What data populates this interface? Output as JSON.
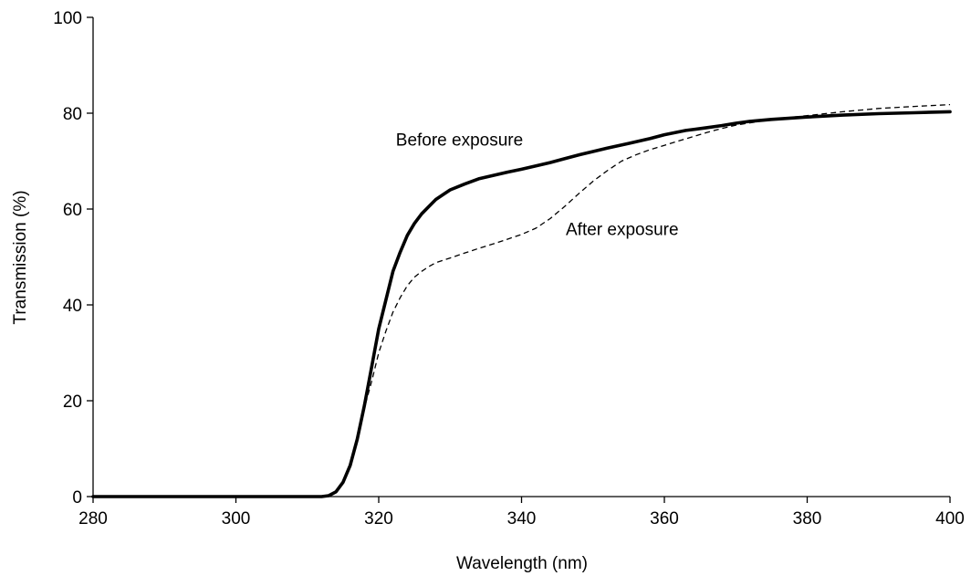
{
  "chart_data": {
    "type": "line",
    "xlabel": "Wavelength (nm)",
    "ylabel": "Transmission (%)",
    "xlim": [
      280,
      400
    ],
    "ylim": [
      0,
      100
    ],
    "xticks": [
      280,
      300,
      320,
      340,
      360,
      380,
      400
    ],
    "yticks": [
      0,
      20,
      40,
      60,
      80,
      100
    ],
    "grid": false,
    "series": [
      {
        "name": "Before exposure",
        "style": "solid-thick",
        "color": "#000000",
        "x": [
          280,
          300,
          312,
          313,
          314,
          315,
          316,
          317,
          318,
          319,
          320,
          321,
          322,
          323,
          324,
          325,
          326,
          327,
          328,
          329,
          330,
          332,
          334,
          336,
          338,
          340,
          342,
          344,
          346,
          348,
          350,
          352,
          355,
          358,
          360,
          363,
          366,
          368,
          370,
          372,
          375,
          380,
          385,
          390,
          395,
          400
        ],
        "y": [
          0,
          0,
          0,
          0.2,
          1,
          3,
          6.5,
          12,
          19,
          27,
          35,
          41,
          47,
          51,
          54.5,
          57,
          59,
          60.5,
          62,
          63,
          64,
          65.2,
          66.3,
          67,
          67.7,
          68.3,
          69,
          69.7,
          70.5,
          71.3,
          72,
          72.7,
          73.7,
          74.7,
          75.5,
          76.4,
          77,
          77.4,
          77.9,
          78.3,
          78.7,
          79.2,
          79.6,
          79.9,
          80.1,
          80.3
        ]
      },
      {
        "name": "After exposure",
        "style": "dashed-thin",
        "color": "#000000",
        "x": [
          280,
          300,
          312,
          313,
          314,
          315,
          316,
          317,
          318,
          319,
          320,
          321,
          322,
          323,
          324,
          325,
          326,
          327,
          328,
          330,
          332,
          334,
          336,
          338,
          340,
          342,
          344,
          346,
          348,
          350,
          352,
          354,
          356,
          358,
          360,
          362,
          364,
          366,
          368,
          370,
          375,
          380,
          385,
          390,
          395,
          400
        ],
        "y": [
          0,
          0,
          0,
          0.2,
          1,
          3,
          6.5,
          12,
          18.5,
          24,
          30,
          34.5,
          38.5,
          41.5,
          44,
          45.8,
          47,
          48,
          48.8,
          49.8,
          50.8,
          51.8,
          52.7,
          53.7,
          54.7,
          56,
          58,
          60.5,
          63.2,
          65.8,
          68,
          70,
          71.3,
          72.4,
          73.3,
          74.2,
          75.1,
          76,
          76.8,
          77.5,
          78.7,
          79.5,
          80.3,
          81,
          81.4,
          81.8
        ]
      }
    ],
    "annotations": [
      {
        "text": "Before exposure",
        "x": 322.4,
        "y": 73.2
      },
      {
        "text": "After exposure",
        "x": 346.2,
        "y": 54.6
      }
    ]
  }
}
